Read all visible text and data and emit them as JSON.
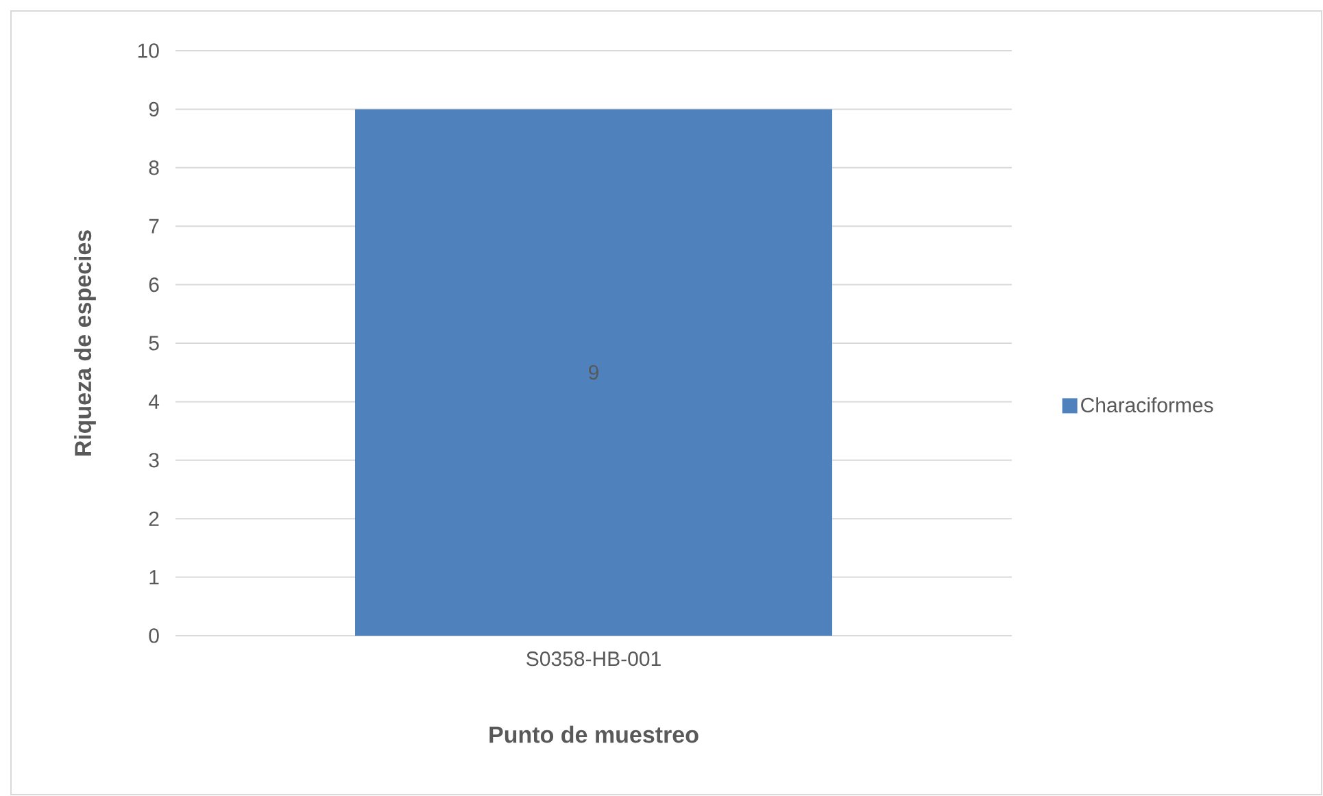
{
  "chart_data": {
    "type": "bar",
    "xlabel": "Punto de muestreo",
    "ylabel": "Riqueza de especies",
    "categories": [
      "S0358-HB-001"
    ],
    "series": [
      {
        "name": "Characiformes",
        "color": "#4f81bd",
        "values": [
          9
        ]
      }
    ],
    "ylim": [
      0,
      10
    ],
    "yticks": [
      0,
      1,
      2,
      3,
      4,
      5,
      6,
      7,
      8,
      9,
      10
    ],
    "grid": "y",
    "legend": "right",
    "data_labels": true
  }
}
